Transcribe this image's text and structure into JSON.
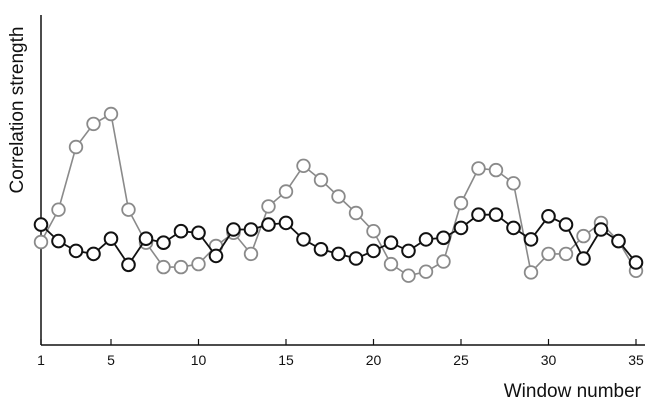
{
  "chart_data": {
    "type": "line",
    "title": "",
    "xlabel": "Window number",
    "ylabel": "Correlation strength",
    "xlim": [
      1,
      35
    ],
    "ylim": [
      0,
      1
    ],
    "x_ticks": [
      1,
      5,
      10,
      15,
      20,
      25,
      30,
      35
    ],
    "y_ticks": [],
    "grid": false,
    "legend": "none",
    "x": [
      1,
      2,
      3,
      4,
      5,
      6,
      7,
      8,
      9,
      10,
      11,
      12,
      13,
      14,
      15,
      16,
      17,
      18,
      19,
      20,
      21,
      22,
      23,
      24,
      25,
      26,
      27,
      28,
      29,
      30,
      31,
      32,
      33,
      34,
      35
    ],
    "series": [
      {
        "color": "#8a8a8a",
        "marker": "open-circle",
        "values": [
          0.312,
          0.41,
          0.6,
          0.67,
          0.7,
          0.41,
          0.31,
          0.236,
          0.236,
          0.245,
          0.3,
          0.34,
          0.276,
          0.42,
          0.465,
          0.543,
          0.5,
          0.45,
          0.4,
          0.345,
          0.245,
          0.21,
          0.222,
          0.253,
          0.43,
          0.535,
          0.53,
          0.49,
          0.22,
          0.276,
          0.276,
          0.33,
          0.37,
          0.315,
          0.225
        ]
      },
      {
        "color": "#111111",
        "marker": "open-circle",
        "values": [
          0.365,
          0.315,
          0.285,
          0.276,
          0.322,
          0.243,
          0.322,
          0.31,
          0.345,
          0.34,
          0.27,
          0.35,
          0.35,
          0.365,
          0.37,
          0.32,
          0.29,
          0.276,
          0.262,
          0.285,
          0.31,
          0.285,
          0.32,
          0.325,
          0.355,
          0.395,
          0.395,
          0.355,
          0.32,
          0.39,
          0.365,
          0.262,
          0.35,
          0.315,
          0.25
        ]
      }
    ]
  }
}
